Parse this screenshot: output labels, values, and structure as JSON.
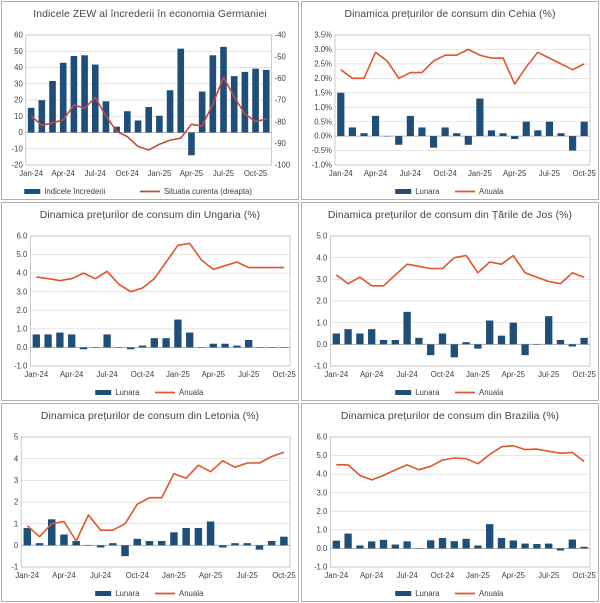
{
  "page": {
    "background": "#ffffff",
    "bar_color": "#1F4E79"
  },
  "chart_data": [
    {
      "type": "bar+line",
      "title": "Indicele ZEW al încrederii în economia Germaniei",
      "x_ticks": [
        "Jan-24",
        "Apr-24",
        "Jul-24",
        "Oct-24",
        "Jan-25",
        "Apr-25",
        "Jul-25",
        "Oct-25"
      ],
      "y_left": {
        "min": -20,
        "max": 60,
        "step": 10,
        "format": "int"
      },
      "y_right": {
        "min": -100,
        "max": -40,
        "step": 10,
        "format": "int"
      },
      "series": [
        {
          "name": "Indicele încrederii",
          "type": "bar",
          "axis": "left",
          "color": "#1F4E79",
          "values": [
            15.2,
            19.9,
            31.7,
            42.9,
            47.1,
            47.5,
            41.8,
            19.2,
            3.6,
            13.1,
            7.4,
            15.7,
            10.3,
            26.0,
            51.6,
            -14.0,
            25.2,
            47.5,
            52.7,
            34.7,
            37.3,
            39.3,
            38.5
          ]
        },
        {
          "name": "Situatia curenta (dreapta)",
          "type": "line",
          "axis": "right",
          "color": "#c44b3c",
          "values": [
            -77.3,
            -81.7,
            -80.5,
            -79.2,
            -72.3,
            -73.8,
            -68.9,
            -77.3,
            -84.5,
            -86.9,
            -91.4,
            -93.1,
            -90.4,
            -88.5,
            -87.6,
            -81.2,
            -82.0,
            -72.0,
            -59.5,
            -68.6,
            -76.4,
            -80.0,
            -78.7
          ]
        }
      ]
    },
    {
      "type": "bar+line",
      "title": "Dinamica prețurilor de consum din Cehia (%)",
      "x_ticks": [
        "Jan-24",
        "Apr-24",
        "Jul-24",
        "Oct-24",
        "Jan-25",
        "Apr-25",
        "Jul-25",
        "Oct-25"
      ],
      "y_left": {
        "min": -1.0,
        "max": 3.5,
        "step": 0.5,
        "format": "pct1"
      },
      "series": [
        {
          "name": "Lunara",
          "type": "bar",
          "axis": "left",
          "color": "#1F4E79",
          "values": [
            1.5,
            0.3,
            0.1,
            0.7,
            0.0,
            -0.3,
            0.7,
            0.3,
            -0.4,
            0.3,
            0.1,
            -0.3,
            1.3,
            0.2,
            0.1,
            -0.1,
            0.5,
            0.2,
            0.5,
            0.1,
            -0.5,
            0.5
          ]
        },
        {
          "name": "Anuala",
          "type": "line",
          "axis": "left",
          "color": "#e0552b",
          "values": [
            2.3,
            2.0,
            2.0,
            2.9,
            2.6,
            2.0,
            2.2,
            2.2,
            2.6,
            2.8,
            2.8,
            3.0,
            2.8,
            2.7,
            2.7,
            1.8,
            2.4,
            2.9,
            2.7,
            2.5,
            2.3,
            2.5
          ]
        }
      ]
    },
    {
      "type": "bar+line",
      "title": "Dinamica prețurilor de consum din Ungaria (%)",
      "x_ticks": [
        "Jan-24",
        "Apr-24",
        "Jul-24",
        "Oct-24",
        "Jan-25",
        "Apr-25",
        "Jul-25",
        "Oct-25"
      ],
      "y_left": {
        "min": -1.0,
        "max": 6.0,
        "step": 1.0,
        "format": "dec1"
      },
      "series": [
        {
          "name": "Lunara",
          "type": "bar",
          "axis": "left",
          "color": "#1F4E79",
          "values": [
            0.7,
            0.7,
            0.8,
            0.7,
            -0.1,
            0.0,
            0.7,
            0.0,
            -0.1,
            0.1,
            0.5,
            0.5,
            1.5,
            0.8,
            0.0,
            0.2,
            0.2,
            0.1,
            0.4,
            0.0,
            0.0,
            0.0
          ]
        },
        {
          "name": "Anuala",
          "type": "line",
          "axis": "left",
          "color": "#e0552b",
          "values": [
            3.8,
            3.7,
            3.6,
            3.7,
            4.0,
            3.7,
            4.1,
            3.4,
            3.0,
            3.2,
            3.7,
            4.6,
            5.5,
            5.6,
            4.7,
            4.2,
            4.4,
            4.6,
            4.3,
            4.3,
            4.3,
            4.3
          ]
        }
      ]
    },
    {
      "type": "bar+line",
      "title": "Dinamica prețurilor de consum din Țările de Jos (%)",
      "x_ticks": [
        "Jan-24",
        "Apr-24",
        "Jul-24",
        "Oct-24",
        "Jan-25",
        "Apr-25",
        "Jul-25",
        "Oct-25"
      ],
      "y_left": {
        "min": -1.0,
        "max": 5.0,
        "step": 1.0,
        "format": "dec1"
      },
      "series": [
        {
          "name": "Lunara",
          "type": "bar",
          "axis": "left",
          "color": "#1F4E79",
          "values": [
            0.5,
            0.7,
            0.5,
            0.7,
            0.2,
            0.2,
            1.5,
            0.3,
            -0.5,
            0.5,
            -0.6,
            0.1,
            -0.2,
            1.1,
            0.4,
            1.0,
            -0.5,
            0.0,
            1.3,
            0.2,
            -0.1,
            0.3
          ]
        },
        {
          "name": "Anuala",
          "type": "line",
          "axis": "left",
          "color": "#e0552b",
          "values": [
            3.2,
            2.8,
            3.1,
            2.7,
            2.7,
            3.2,
            3.7,
            3.6,
            3.5,
            3.5,
            4.0,
            4.1,
            3.3,
            3.8,
            3.7,
            4.1,
            3.3,
            3.1,
            2.9,
            2.8,
            3.3,
            3.1
          ]
        }
      ]
    },
    {
      "type": "bar+line",
      "title": "Dinamica prețurilor de consum din Letonia (%)",
      "x_ticks": [
        "Jan-24",
        "Apr-24",
        "Jul-24",
        "Oct-24",
        "Jan-25",
        "Apr-25",
        "Jul-25",
        "Oct-25"
      ],
      "y_left": {
        "min": -1,
        "max": 5,
        "step": 1,
        "format": "int"
      },
      "series": [
        {
          "name": "Lunara",
          "type": "bar",
          "axis": "left",
          "color": "#1F4E79",
          "values": [
            0.8,
            0.1,
            1.2,
            0.5,
            0.2,
            0.0,
            -0.1,
            0.1,
            -0.5,
            0.3,
            0.2,
            0.2,
            0.6,
            0.8,
            0.8,
            1.1,
            -0.1,
            0.1,
            0.1,
            -0.2,
            0.2,
            0.4
          ]
        },
        {
          "name": "Anuala",
          "type": "line",
          "axis": "left",
          "color": "#e0552b",
          "values": [
            0.9,
            0.4,
            1.0,
            1.1,
            0.2,
            1.4,
            0.7,
            0.7,
            1.0,
            1.9,
            2.2,
            2.2,
            3.3,
            3.1,
            3.7,
            3.4,
            3.9,
            3.6,
            3.8,
            3.8,
            4.1,
            4.3
          ]
        }
      ]
    },
    {
      "type": "bar+line",
      "title": "Dinamica prețurilor de consum din Brazilia (%)",
      "x_ticks": [
        "Jan-24",
        "Apr-24",
        "Jul-24",
        "Oct-24",
        "Jan-25",
        "Apr-25",
        "Jul-25",
        "Oct-25"
      ],
      "y_left": {
        "min": -1.0,
        "max": 6.0,
        "step": 1.0,
        "format": "dec1"
      },
      "series": [
        {
          "name": "Lunara",
          "type": "bar",
          "axis": "left",
          "color": "#1F4E79",
          "values": [
            0.42,
            0.8,
            0.16,
            0.38,
            0.46,
            0.21,
            0.38,
            -0.02,
            0.44,
            0.56,
            0.39,
            0.52,
            0.16,
            1.31,
            0.56,
            0.43,
            0.26,
            0.24,
            0.26,
            -0.11,
            0.48,
            0.09
          ]
        },
        {
          "name": "Anuala",
          "type": "line",
          "axis": "left",
          "color": "#e0552b",
          "values": [
            4.51,
            4.5,
            3.93,
            3.69,
            3.93,
            4.23,
            4.5,
            4.24,
            4.42,
            4.76,
            4.87,
            4.83,
            4.56,
            5.06,
            5.48,
            5.53,
            5.32,
            5.35,
            5.23,
            5.13,
            5.17,
            4.68
          ]
        }
      ]
    }
  ]
}
